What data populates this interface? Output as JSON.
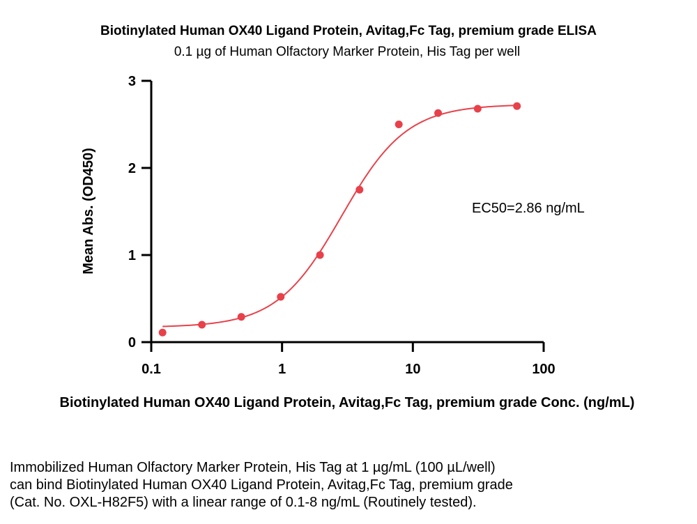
{
  "chart_data": {
    "type": "scatter",
    "title": "Biotinylated Human OX40 Ligand Protein, Avitag,Fc Tag, premium grade ELISA",
    "subtitle": "0.1 µg of Human Olfactory Marker Protein, His Tag per well",
    "xlabel": "Biotinylated Human OX40 Ligand Protein, Avitag,Fc Tag, premium grade Conc. (ng/mL)",
    "ylabel": "Mean Abs. (OD450)",
    "x_scale": "log",
    "xlim": [
      0.1,
      100
    ],
    "ylim": [
      0,
      3
    ],
    "x_ticks": [
      "0.1",
      "1",
      "10",
      "100"
    ],
    "y_ticks": [
      "0",
      "1",
      "2",
      "3"
    ],
    "annotation": "EC50=2.86 ng/mL",
    "color": "#e8414a",
    "grid": false,
    "series": [
      {
        "x": [
          0.122,
          0.244,
          0.488,
          0.977,
          1.95,
          3.91,
          7.81,
          15.6,
          31.3,
          62.5
        ],
        "y": [
          0.11,
          0.2,
          0.29,
          0.52,
          1.0,
          1.75,
          2.5,
          2.63,
          2.68,
          2.71
        ]
      }
    ],
    "fit": {
      "model": "4PL",
      "bottom": 0.17,
      "top": 2.73,
      "ec50": 2.86,
      "hill": 1.75
    }
  },
  "caption_lines": [
    "Immobilized Human Olfactory Marker Protein, His Tag at 1 µg/mL (100 µL/well)",
    "can bind Biotinylated Human OX40 Ligand Protein, Avitag,Fc Tag, premium grade",
    "(Cat. No. OXL-H82F5) with a linear range of 0.1-8 ng/mL (Routinely tested)."
  ]
}
